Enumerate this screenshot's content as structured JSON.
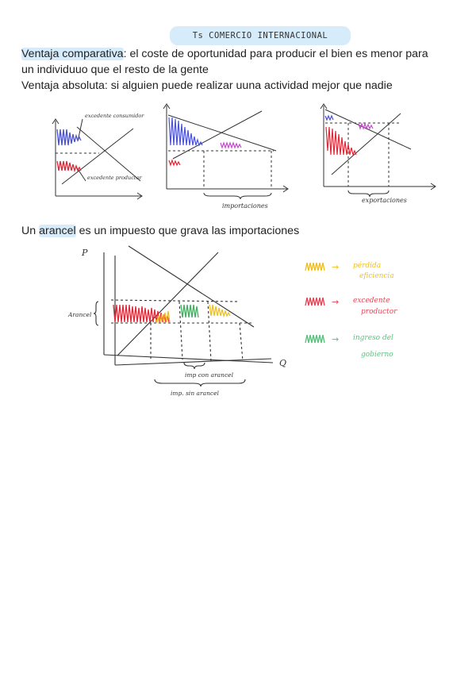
{
  "title": "Ts COMERCIO INTERNACIONAL",
  "text": {
    "ventaja_comparativa_term": "Ventaja comparativa",
    "ventaja_comparativa_def": ": el coste de oportunidad para producir el bien es menor para",
    "ventaja_comparativa_def2": "un individuuo que el resto de la gente",
    "ventaja_absoluta": "Ventaja absoluta: si alguien puede realizar uuna actividad mejor que nadie",
    "arancel_pre": "Un ",
    "arancel_term": "arancel",
    "arancel_post": " es un impuesto que grava las importaciones"
  },
  "diagram1": {
    "label_consumidor": "excedente consumidor",
    "label_productor": "excedente productor"
  },
  "diagram2": {
    "label": "importaciones"
  },
  "diagram3": {
    "label": "exportaciones"
  },
  "diagram4": {
    "axis_p": "P",
    "axis_q": "Q",
    "label_arancel": "Arancel",
    "label_imp_con": "imp con arancel",
    "label_imp_sin": "imp. sin arancel"
  },
  "legend": {
    "items": [
      {
        "arrow": "→",
        "text1": "pérdida",
        "text2": "eficiencia",
        "color": "#f0c020"
      },
      {
        "arrow": "→",
        "text1": "excedente",
        "text2": "productor",
        "color": "#e04858"
      },
      {
        "arrow": "→",
        "text1": "ingreso del",
        "text2": "gobierno",
        "color": "#5cc080"
      }
    ]
  },
  "colors": {
    "blue": "#4a52d8",
    "red": "#e02838",
    "magenta": "#c848d0",
    "yellow": "#f0c020",
    "green": "#40b060"
  }
}
